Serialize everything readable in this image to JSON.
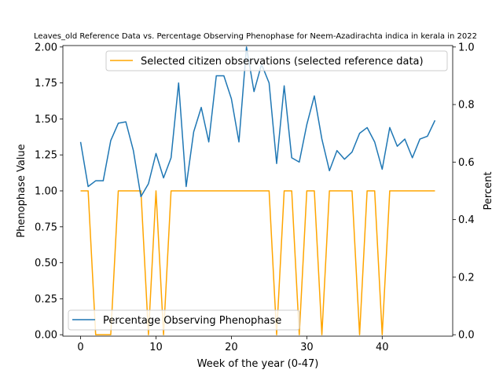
{
  "chart_data": {
    "type": "line",
    "title": "Leaves_old Reference Data vs. Percentage Observing Phenophase for Neem-Azadirachta indica in kerala in 2022",
    "xlabel": "Week of the year (0-47)",
    "ylabel_left": "Phenophase Value",
    "ylabel_right": "Percent",
    "xlim": [
      -2.35,
      49.35
    ],
    "ylim_left": [
      -0.01,
      2.01
    ],
    "ylim_right": [
      -0.005,
      1.005
    ],
    "xticks": [
      0,
      10,
      20,
      30,
      40
    ],
    "yticks_left": [
      "0.00",
      "0.25",
      "0.50",
      "0.75",
      "1.00",
      "1.25",
      "1.50",
      "1.75",
      "2.00"
    ],
    "yticks_right": [
      "0.0",
      "0.2",
      "0.4",
      "0.6",
      "0.8",
      "1.0"
    ],
    "grid": false,
    "colors": {
      "series_left": "#1f77b4",
      "series_right": "#ffa500"
    },
    "series": [
      {
        "name": "Percentage Observing Phenophase",
        "axis": "left",
        "legend_position": "lower-left",
        "x": [
          0,
          1,
          2,
          3,
          4,
          5,
          6,
          7,
          8,
          9,
          10,
          11,
          12,
          13,
          14,
          15,
          16,
          17,
          18,
          19,
          20,
          21,
          22,
          23,
          24,
          25,
          26,
          27,
          28,
          29,
          30,
          31,
          32,
          33,
          34,
          35,
          36,
          37,
          38,
          39,
          40,
          41,
          42,
          43,
          44,
          45,
          46,
          47
        ],
        "values": [
          1.34,
          1.03,
          1.07,
          1.07,
          1.35,
          1.47,
          1.48,
          1.28,
          0.96,
          1.05,
          1.26,
          1.09,
          1.23,
          1.75,
          1.03,
          1.41,
          1.58,
          1.34,
          1.8,
          1.8,
          1.64,
          1.34,
          2.0,
          1.69,
          1.88,
          1.75,
          1.19,
          1.73,
          1.23,
          1.2,
          1.46,
          1.66,
          1.36,
          1.14,
          1.28,
          1.22,
          1.27,
          1.4,
          1.44,
          1.34,
          1.15,
          1.44,
          1.31,
          1.36,
          1.23,
          1.36,
          1.38,
          1.49
        ]
      },
      {
        "name": "Selected citizen observations (selected reference data)",
        "axis": "right",
        "legend_position": "upper-right",
        "x": [
          0,
          1,
          2,
          3,
          4,
          5,
          6,
          7,
          8,
          9,
          10,
          11,
          12,
          13,
          14,
          15,
          16,
          17,
          18,
          19,
          20,
          21,
          22,
          23,
          24,
          25,
          26,
          27,
          28,
          29,
          30,
          31,
          32,
          33,
          34,
          35,
          36,
          37,
          38,
          39,
          40,
          41,
          42,
          43,
          44,
          45,
          46,
          47
        ],
        "values": [
          0.5,
          0.5,
          0,
          0,
          0,
          0.5,
          0.5,
          0.5,
          0.5,
          0,
          0.5,
          0,
          0.5,
          0.5,
          0.5,
          0.5,
          0.5,
          0.5,
          0.5,
          0.5,
          0.5,
          0.5,
          0.5,
          0.5,
          0.5,
          0.5,
          0,
          0.5,
          0.5,
          0,
          0.5,
          0.5,
          0,
          0.5,
          0.5,
          0.5,
          0.5,
          0,
          0.5,
          0.5,
          0,
          0.5,
          0.5,
          0.5,
          0.5,
          0.5,
          0.5,
          0.5
        ]
      }
    ]
  }
}
